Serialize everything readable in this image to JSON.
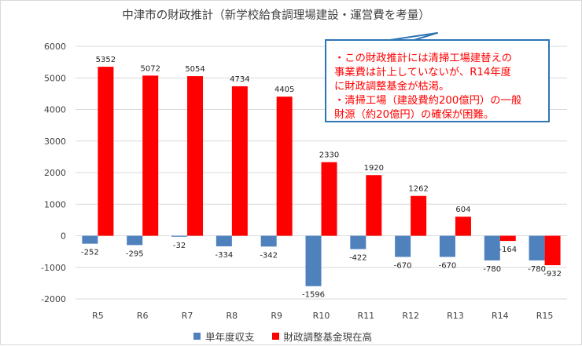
{
  "chart_data": {
    "type": "bar",
    "title": "中津市の財政推計（新学校給食調理場建設・運営費を考量）",
    "categories": [
      "R5",
      "R6",
      "R7",
      "R8",
      "R9",
      "R10",
      "R11",
      "R12",
      "R13",
      "R14",
      "R15"
    ],
    "series": [
      {
        "name": "単年度収支",
        "color": "#4f81bd",
        "values": [
          -252,
          -295,
          -32,
          -334,
          -342,
          -1596,
          -422,
          -670,
          -670,
          -780,
          -780
        ]
      },
      {
        "name": "財政調整基金現在高",
        "color": "#ff0000",
        "values": [
          5352,
          5072,
          5054,
          4734,
          4405,
          2330,
          1920,
          1262,
          604,
          -164,
          -932
        ]
      }
    ],
    "ylim": [
      -2000,
      6000
    ],
    "yticks": [
      -2000,
      -1000,
      0,
      1000,
      2000,
      3000,
      4000,
      5000,
      6000
    ],
    "grid": true,
    "legend": "bottom",
    "annotation": {
      "lines": [
        "・この財政推計には清掃工場建替えの",
        "事業費は計上していないが、R14年度",
        "に財政調整基金が枯渇。",
        "・清掃工場（建設費約200億円）の一般",
        "財源（約20億円）の確保が困難。"
      ],
      "text_color": "#ff0000",
      "border_color": "#2e75b6"
    }
  }
}
